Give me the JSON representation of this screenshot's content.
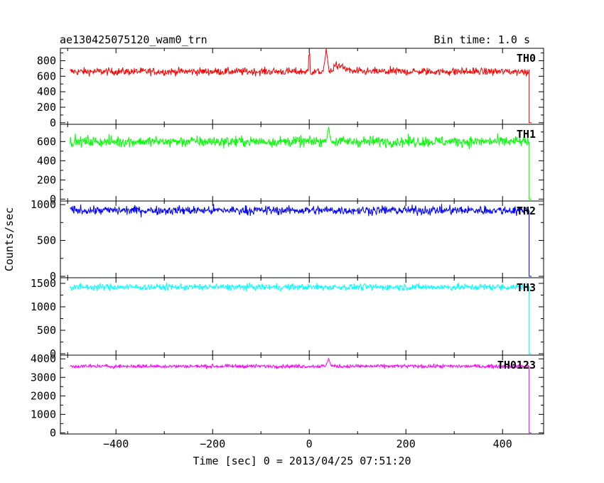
{
  "header": {
    "title": "ae130425075120_wam0_trn",
    "bin_time": "Bin time: 1.0 s"
  },
  "chart_data": {
    "type": "line",
    "xlabel": "Time [sec] 0 = 2013/04/25 07:51:20",
    "ylabel": "Counts/sec",
    "xlim": [
      -515,
      485
    ],
    "x_ticks": [
      -400,
      -200,
      0,
      200,
      400
    ],
    "x_tick_labels": [
      "−400",
      "−200",
      "0",
      "200",
      "400"
    ],
    "x_range_data": [
      -495,
      455
    ],
    "grid": false,
    "panels": [
      {
        "name": "TH0",
        "color": "#ff0000",
        "ylim": [
          -20,
          960
        ],
        "y_ticks": [
          0,
          200,
          400,
          600,
          800
        ],
        "baseline": 660,
        "noise": 35,
        "features": [
          {
            "x": 0,
            "value": 900,
            "kind": "spike"
          },
          {
            "x": 35,
            "value": 950,
            "kind": "peak"
          },
          {
            "x": 50,
            "value": 760,
            "kind": "decay"
          }
        ],
        "end_drop": {
          "x": 455,
          "value": 0
        }
      },
      {
        "name": "TH1",
        "color": "#00ff00",
        "ylim": [
          -20,
          780
        ],
        "y_ticks": [
          0,
          200,
          400,
          600
        ],
        "baseline": 600,
        "noise": 40,
        "features": [
          {
            "x": 40,
            "value": 740,
            "kind": "peak"
          }
        ],
        "end_drop": {
          "x": 455,
          "value": 0
        }
      },
      {
        "name": "TH2",
        "color": "#0000ff",
        "ylim": [
          -20,
          1050
        ],
        "y_ticks": [
          0,
          500,
          1000
        ],
        "baseline": 920,
        "noise": 45,
        "features": [],
        "end_drop": {
          "x": 455,
          "value": 0
        }
      },
      {
        "name": "TH3",
        "color": "#00ffff",
        "ylim": [
          -30,
          1620
        ],
        "y_ticks": [
          0,
          500,
          1000,
          1500
        ],
        "baseline": 1420,
        "noise": 50,
        "features": [],
        "end_drop": {
          "x": 455,
          "value": 0
        }
      },
      {
        "name": "TH0123",
        "color": "#ff00ff",
        "ylim": [
          -60,
          4200
        ],
        "y_ticks": [
          0,
          1000,
          2000,
          3000,
          4000
        ],
        "baseline": 3600,
        "noise": 70,
        "features": [
          {
            "x": 40,
            "value": 4000,
            "kind": "peak"
          }
        ],
        "end_drop": {
          "x": 455,
          "value": 0
        }
      }
    ]
  }
}
